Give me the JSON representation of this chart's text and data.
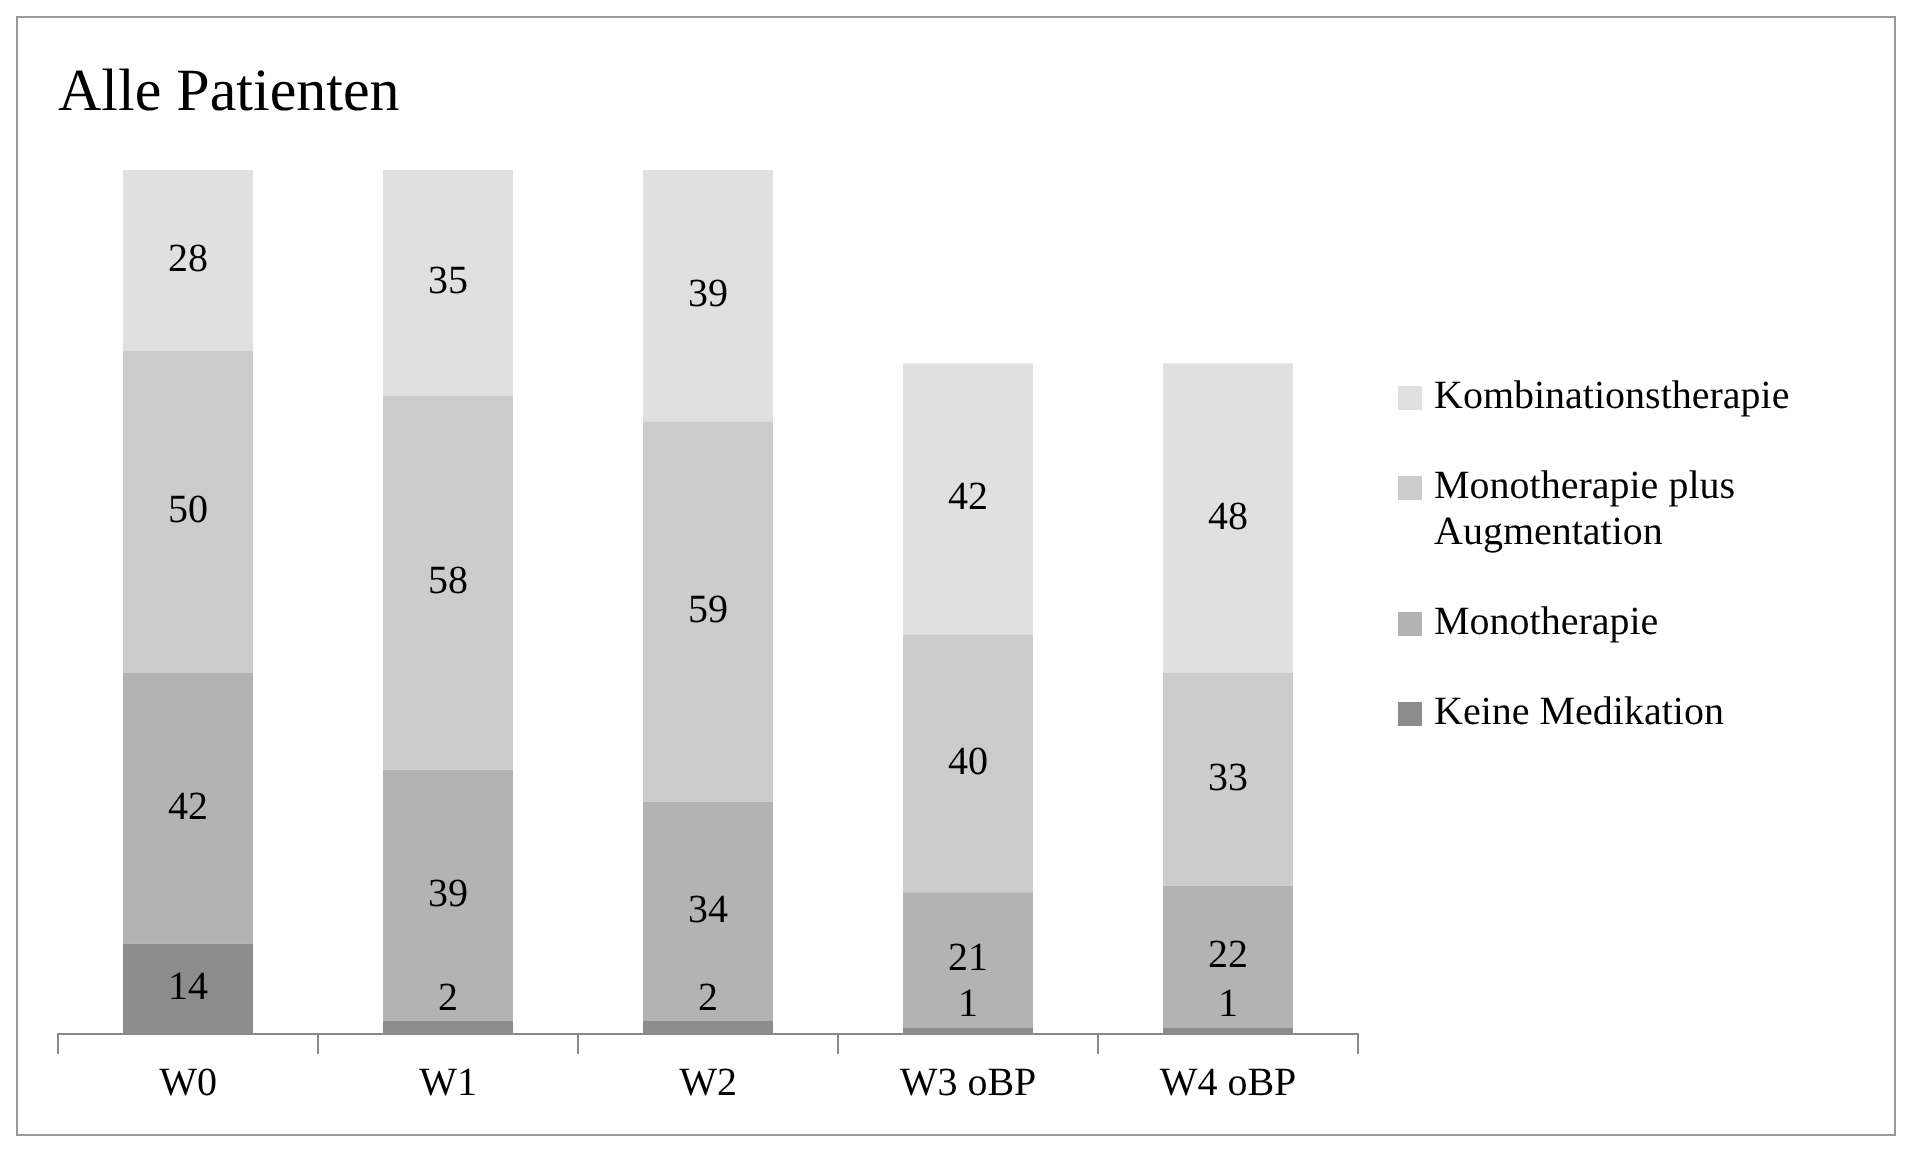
{
  "chart_data": {
    "type": "bar",
    "title": "Alle Patienten",
    "stacked": true,
    "legend": "right",
    "grid": false,
    "data_labels": true,
    "tick_labels": "x",
    "categories": [
      "W0",
      "W1",
      "W2",
      "W3 oBP",
      "W4 oBP"
    ],
    "series": [
      {
        "name": "Keine Medikation",
        "color": "#8c8c8c",
        "values": [
          14,
          2,
          2,
          1,
          1
        ]
      },
      {
        "name": "Monotherapie",
        "color": "#b3b3b3",
        "values": [
          42,
          39,
          34,
          21,
          22
        ]
      },
      {
        "name": "Monotherapie plus Augmentation",
        "color": "#cccccc",
        "values": [
          50,
          58,
          59,
          40,
          33
        ]
      },
      {
        "name": "Kombinationstherapie",
        "color": "#e0e0e0",
        "values": [
          28,
          35,
          39,
          42,
          48
        ]
      }
    ]
  }
}
